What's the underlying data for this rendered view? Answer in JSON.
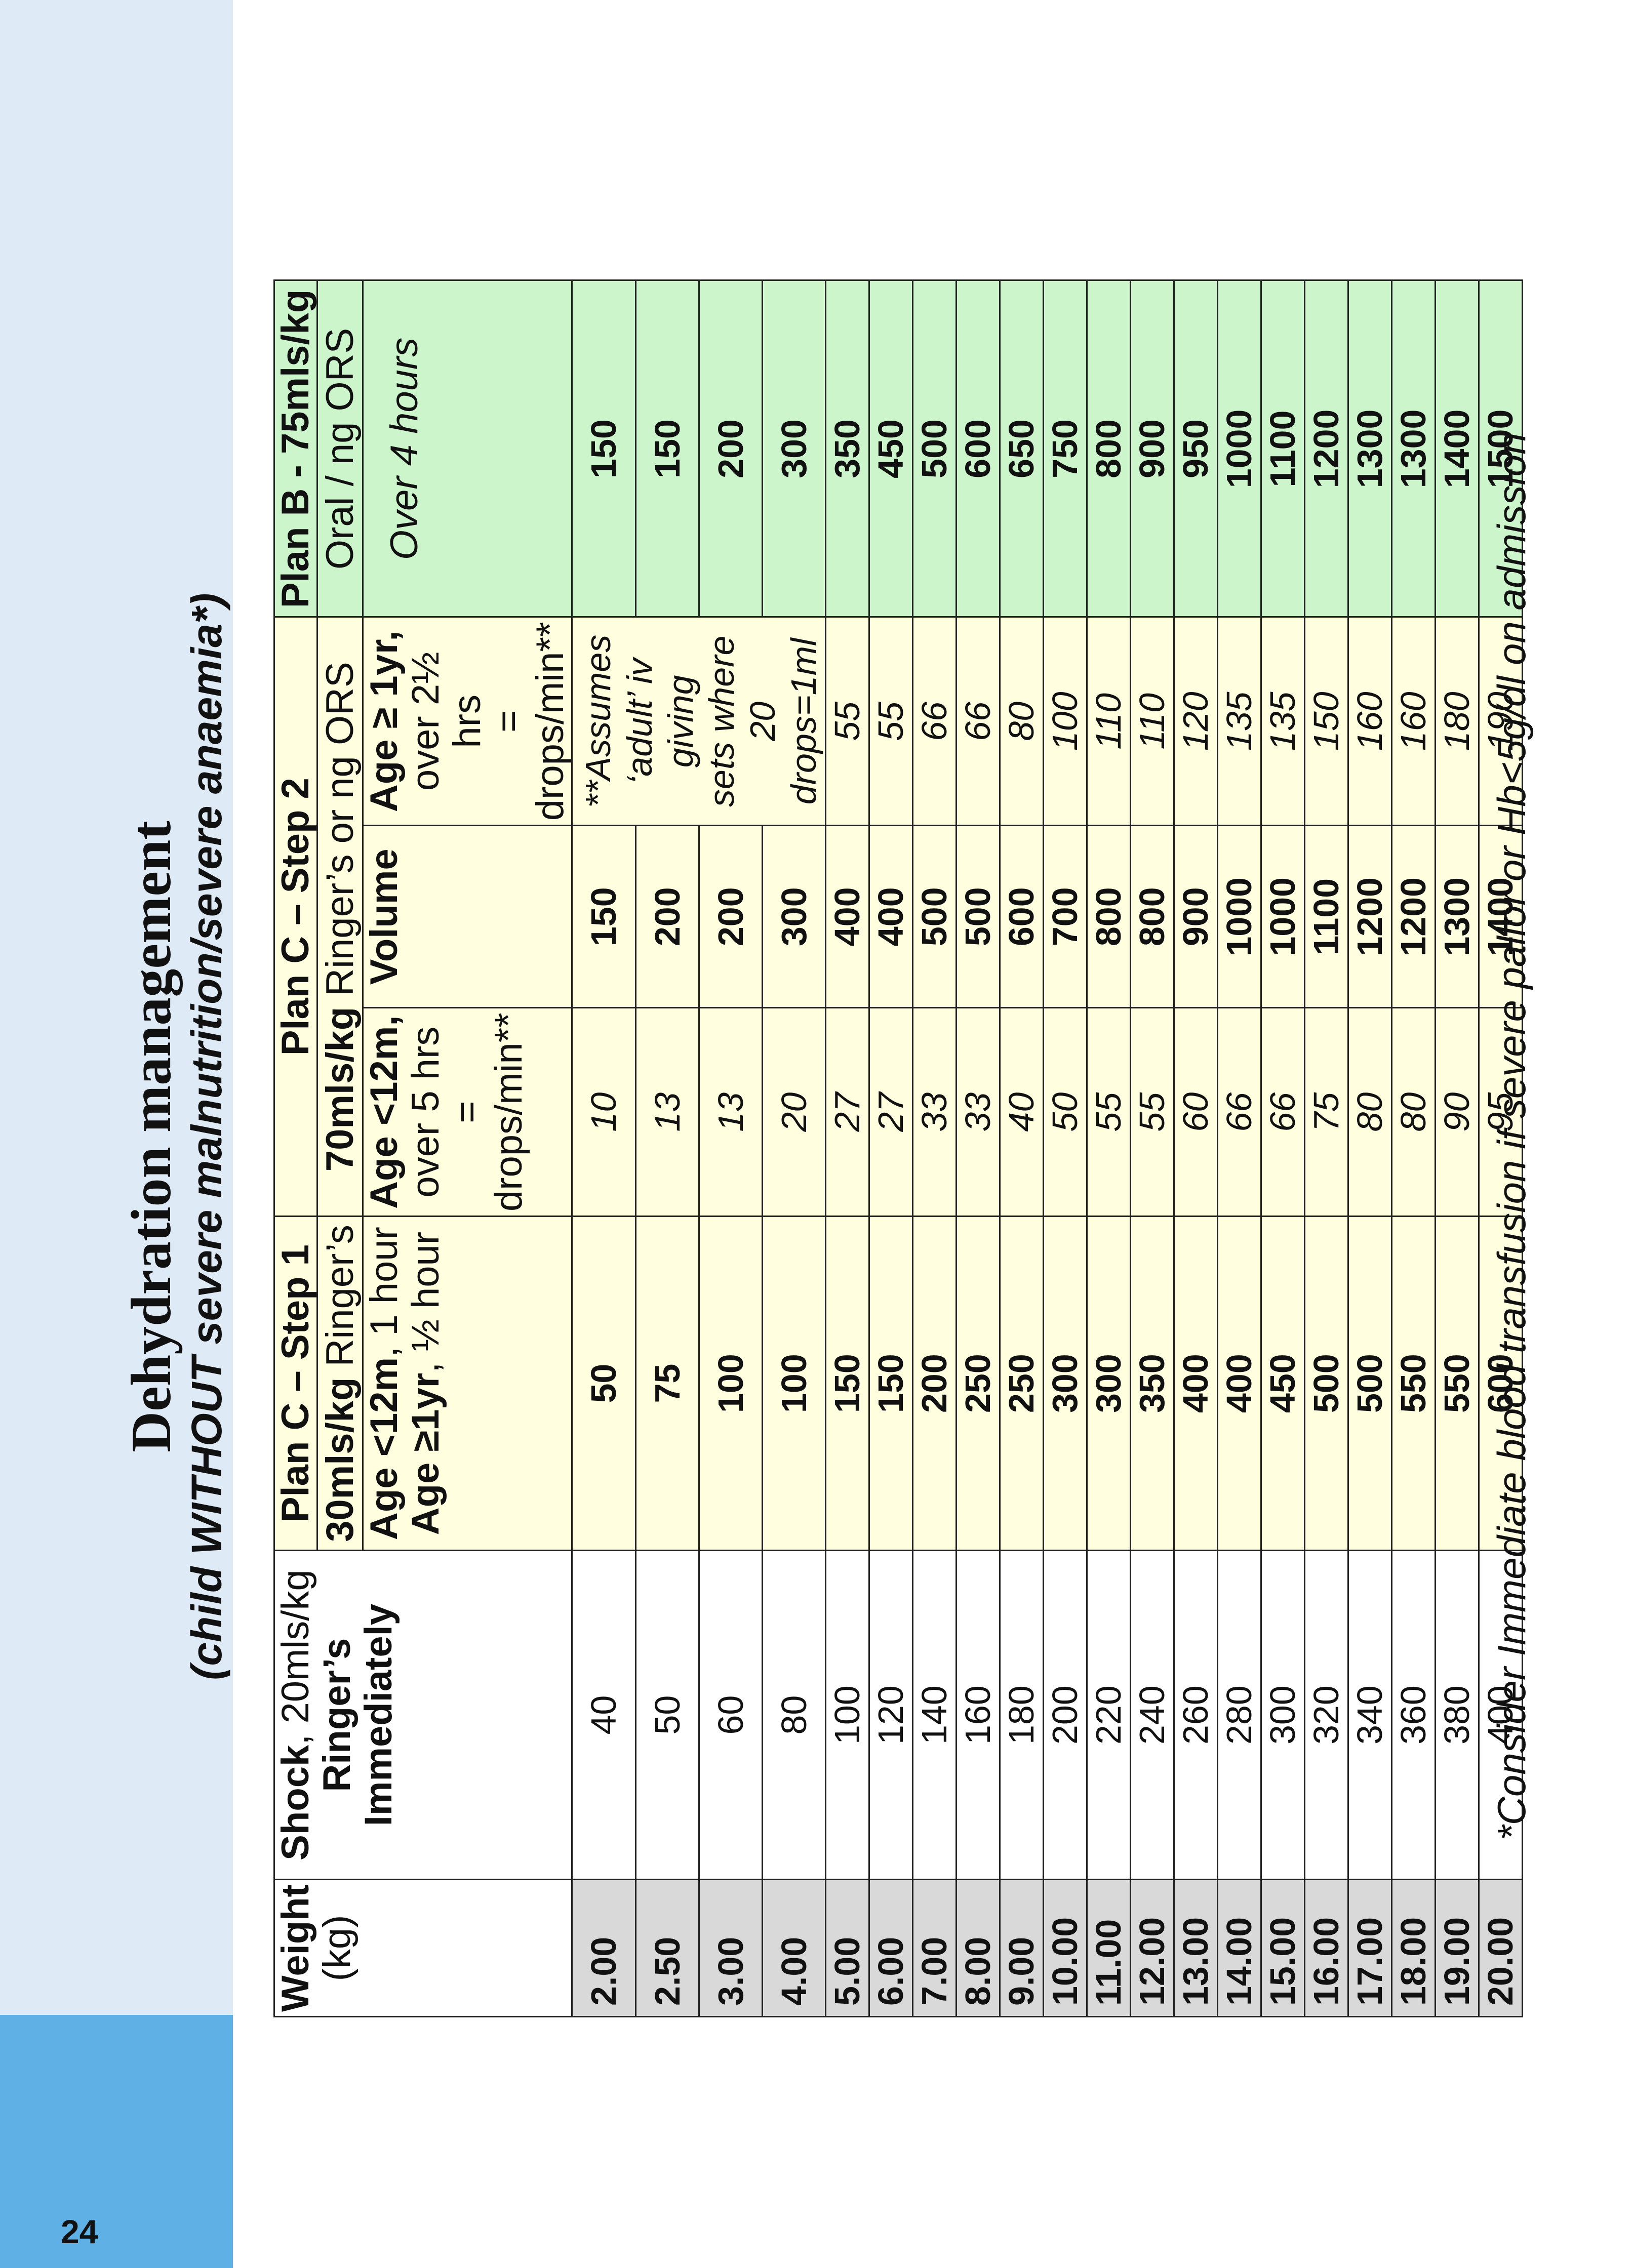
{
  "page_number": "24",
  "title": "Dehydration management",
  "subtitle_prefix": "(child ",
  "subtitle_emph": "WITHOUT",
  "subtitle_suffix": " severe malnutrition/severe anaemia*)",
  "headers": {
    "weight": "Weight",
    "weight_unit": "(kg)",
    "shock_title": "Shock",
    "shock_rate": ", 20mls/kg",
    "shock_l2": "Ringer’s",
    "shock_l3": "Immediately",
    "c1_title": "Plan C – Step 1",
    "c1_rate": "30mls/kg",
    "c1_fluid": " Ringer’s",
    "c1_age1": "Age <12m",
    "c1_age1_dur": ", 1 hour",
    "c1_age2": "Age ≥1yr",
    "c1_age2_dur": ", ½ hour",
    "c2_title": "Plan C – Step 2",
    "c2_rate": "70mls/kg",
    "c2_fluid": " Ringer’s or ng ORS",
    "c2_young_l1": "Age <12m,",
    "c2_young_l2": "over 5 hrs",
    "c2_young_l3": "= drops/min**",
    "c2_volume": "Volume",
    "c2_old_l1": "Age ≥ 1yr,",
    "c2_old_l2": "over 2½ hrs",
    "c2_old_l3": "= drops/min**",
    "b_title": "Plan B - 75mls/kg",
    "b_route": "Oral / ng ORS",
    "b_time": "Over 4 hours"
  },
  "drip_note": [
    "**Assumes",
    "‘adult’ iv giving",
    "sets where",
    "20 drops=1ml"
  ],
  "rows": [
    {
      "weight": "2.00",
      "shock": "40",
      "c1": "50",
      "c2_young": "10",
      "c2_volume": "150",
      "c2_old": "",
      "b": "150"
    },
    {
      "weight": "2.50",
      "shock": "50",
      "c1": "75",
      "c2_young": "13",
      "c2_volume": "200",
      "c2_old": "",
      "b": "150"
    },
    {
      "weight": "3.00",
      "shock": "60",
      "c1": "100",
      "c2_young": "13",
      "c2_volume": "200",
      "c2_old": "",
      "b": "200"
    },
    {
      "weight": "4.00",
      "shock": "80",
      "c1": "100",
      "c2_young": "20",
      "c2_volume": "300",
      "c2_old": "",
      "b": "300"
    },
    {
      "weight": "5.00",
      "shock": "100",
      "c1": "150",
      "c2_young": "27",
      "c2_volume": "400",
      "c2_old": "55",
      "b": "350"
    },
    {
      "weight": "6.00",
      "shock": "120",
      "c1": "150",
      "c2_young": "27",
      "c2_volume": "400",
      "c2_old": "55",
      "b": "450"
    },
    {
      "weight": "7.00",
      "shock": "140",
      "c1": "200",
      "c2_young": "33",
      "c2_volume": "500",
      "c2_old": "66",
      "b": "500"
    },
    {
      "weight": "8.00",
      "shock": "160",
      "c1": "250",
      "c2_young": "33",
      "c2_volume": "500",
      "c2_old": "66",
      "b": "600"
    },
    {
      "weight": "9.00",
      "shock": "180",
      "c1": "250",
      "c2_young": "40",
      "c2_volume": "600",
      "c2_old": "80",
      "b": "650"
    },
    {
      "weight": "10.00",
      "shock": "200",
      "c1": "300",
      "c2_young": "50",
      "c2_volume": "700",
      "c2_old": "100",
      "b": "750"
    },
    {
      "weight": "11.00",
      "shock": "220",
      "c1": "300",
      "c2_young": "55",
      "c2_volume": "800",
      "c2_old": "110",
      "b": "800"
    },
    {
      "weight": "12.00",
      "shock": "240",
      "c1": "350",
      "c2_young": "55",
      "c2_volume": "800",
      "c2_old": "110",
      "b": "900"
    },
    {
      "weight": "13.00",
      "shock": "260",
      "c1": "400",
      "c2_young": "60",
      "c2_volume": "900",
      "c2_old": "120",
      "b": "950"
    },
    {
      "weight": "14.00",
      "shock": "280",
      "c1": "400",
      "c2_young": "66",
      "c2_volume": "1000",
      "c2_old": "135",
      "b": "1000"
    },
    {
      "weight": "15.00",
      "shock": "300",
      "c1": "450",
      "c2_young": "66",
      "c2_volume": "1000",
      "c2_old": "135",
      "b": "1100"
    },
    {
      "weight": "16.00",
      "shock": "320",
      "c1": "500",
      "c2_young": "75",
      "c2_volume": "1100",
      "c2_old": "150",
      "b": "1200"
    },
    {
      "weight": "17.00",
      "shock": "340",
      "c1": "500",
      "c2_young": "80",
      "c2_volume": "1200",
      "c2_old": "160",
      "b": "1300"
    },
    {
      "weight": "18.00",
      "shock": "360",
      "c1": "550",
      "c2_young": "80",
      "c2_volume": "1200",
      "c2_old": "160",
      "b": "1300"
    },
    {
      "weight": "19.00",
      "shock": "380",
      "c1": "550",
      "c2_young": "90",
      "c2_volume": "1300",
      "c2_old": "180",
      "b": "1400"
    },
    {
      "weight": "20.00",
      "shock": "400",
      "c1": "600",
      "c2_young": "95",
      "c2_volume": "1400",
      "c2_old": "190",
      "b": "1500"
    }
  ],
  "footnote": "*Consider Immediate blood transfusion if severe pallor or Hb<5g/dl on admission"
}
